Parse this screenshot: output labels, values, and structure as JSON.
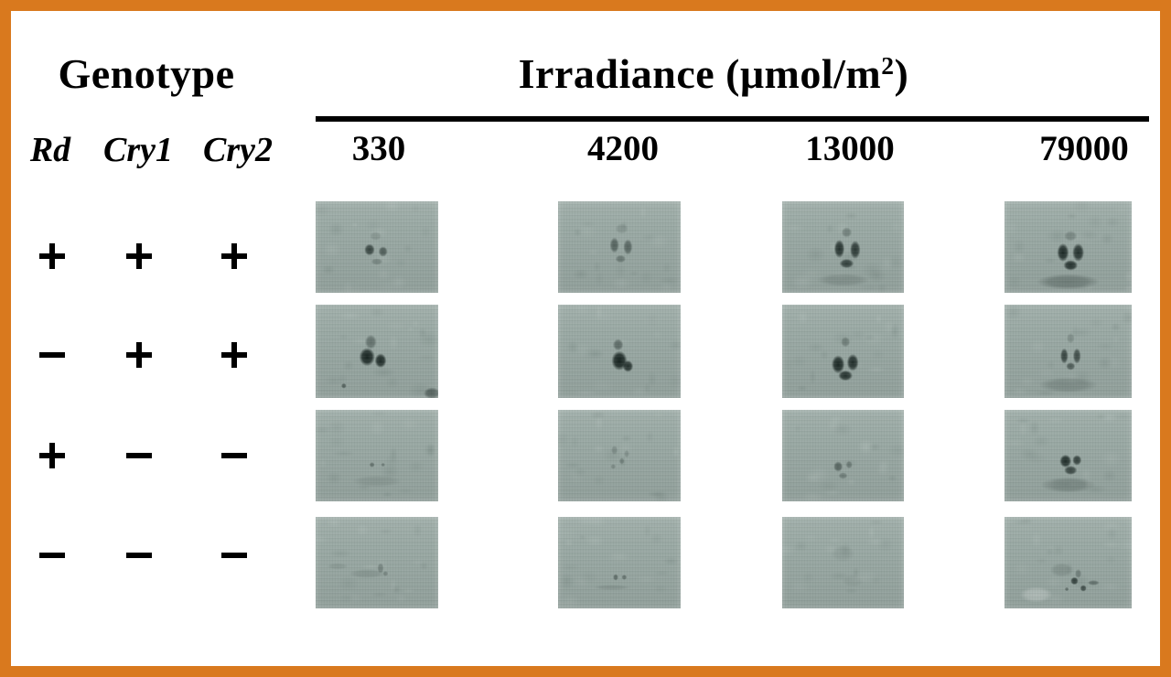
{
  "colors": {
    "frame": "#d9791e",
    "background": "#ffffff",
    "panel_base": "#9baaa5",
    "ink": "#101c19",
    "text": "#000000"
  },
  "genotype": {
    "title": "Genotype",
    "genes": [
      "Rd",
      "Cry1",
      "Cry2"
    ],
    "rows": [
      [
        "+",
        "+",
        "+"
      ],
      [
        "−",
        "+",
        "+"
      ],
      [
        "+",
        "−",
        "−"
      ],
      [
        "−",
        "−",
        "−"
      ]
    ]
  },
  "irradiance": {
    "title_pre": "Irradiance (μmol/m",
    "title_sup": "2",
    "title_post": ")",
    "levels": [
      "330",
      "4200",
      "13000",
      "79000"
    ]
  },
  "panels": {
    "rows": [
      [
        {
          "blobs": [
            [
              44,
              53,
              8,
              9,
              0.72
            ],
            [
              55,
              55,
              7,
              8,
              0.55
            ],
            [
              49,
              38,
              9,
              7,
              0.15
            ],
            [
              50,
              66,
              9,
              5,
              0.25
            ]
          ]
        },
        {
          "blobs": [
            [
              46,
              48,
              7,
              12,
              0.5
            ],
            [
              57,
              50,
              7,
              12,
              0.48
            ],
            [
              51,
              63,
              8,
              6,
              0.35
            ],
            [
              52,
              30,
              10,
              8,
              0.15
            ]
          ]
        },
        {
          "blobs": [
            [
              47,
              52,
              8,
              14,
              0.85
            ],
            [
              60,
              53,
              8,
              14,
              0.8
            ],
            [
              53,
              68,
              11,
              7,
              0.75
            ],
            [
              53,
              34,
              8,
              8,
              0.3
            ],
            [
              50,
              86,
              40,
              10,
              0.15
            ]
          ]
        },
        {
          "blobs": [
            [
              46,
              56,
              9,
              14,
              0.9
            ],
            [
              58,
              56,
              9,
              14,
              0.85
            ],
            [
              52,
              70,
              11,
              8,
              0.85
            ],
            [
              52,
              38,
              10,
              8,
              0.25
            ],
            [
              50,
              88,
              48,
              12,
              0.28
            ]
          ]
        }
      ],
      [
        {
          "blobs": [
            [
              42,
              56,
              12,
              14,
              0.95
            ],
            [
              53,
              60,
              9,
              11,
              0.9
            ],
            [
              45,
              40,
              9,
              11,
              0.4
            ],
            [
              23,
              87,
              4,
              4,
              0.5
            ],
            [
              95,
              95,
              13,
              9,
              0.5
            ]
          ]
        },
        {
          "blobs": [
            [
              50,
              60,
              12,
              15,
              0.97
            ],
            [
              49,
              43,
              8,
              9,
              0.45
            ],
            [
              57,
              66,
              8,
              9,
              0.85
            ]
          ]
        },
        {
          "blobs": [
            [
              46,
              64,
              10,
              14,
              0.92
            ],
            [
              58,
              62,
              9,
              13,
              0.87
            ],
            [
              52,
              76,
              11,
              8,
              0.85
            ],
            [
              52,
              40,
              7,
              8,
              0.3
            ]
          ]
        },
        {
          "blobs": [
            [
              47,
              55,
              6,
              12,
              0.72
            ],
            [
              57,
              55,
              6,
              12,
              0.66
            ],
            [
              52,
              66,
              7,
              6,
              0.55
            ],
            [
              52,
              36,
              6,
              8,
              0.2
            ],
            [
              50,
              86,
              45,
              12,
              0.18
            ]
          ]
        }
      ],
      [
        {
          "blobs": [
            [
              46,
              60,
              4,
              4,
              0.38
            ],
            [
              55,
              60,
              3,
              3,
              0.3
            ],
            [
              50,
              78,
              38,
              9,
              0.1
            ]
          ]
        },
        {
          "blobs": [
            [
              46,
              44,
              5,
              7,
              0.2
            ],
            [
              52,
              56,
              4,
              5,
              0.26
            ],
            [
              45,
              62,
              4,
              4,
              0.22
            ],
            [
              56,
              48,
              4,
              6,
              0.18
            ]
          ]
        },
        {
          "blobs": [
            [
              46,
              62,
              7,
              8,
              0.48
            ],
            [
              55,
              60,
              5,
              6,
              0.32
            ],
            [
              50,
              72,
              7,
              5,
              0.3
            ]
          ]
        },
        {
          "blobs": [
            [
              48,
              56,
              9,
              10,
              0.88
            ],
            [
              57,
              55,
              7,
              8,
              0.75
            ],
            [
              52,
              66,
              10,
              7,
              0.7
            ],
            [
              50,
              82,
              42,
              12,
              0.22
            ]
          ]
        }
      ],
      [
        {
          "blobs": [
            [
              53,
              56,
              5,
              8,
              0.28
            ],
            [
              57,
              62,
              4,
              4,
              0.25
            ],
            [
              42,
              62,
              28,
              7,
              0.12
            ],
            [
              18,
              54,
              16,
              5,
              0.1
            ]
          ]
        },
        {
          "blobs": [
            [
              47,
              66,
              4,
              5,
              0.42
            ],
            [
              54,
              66,
              4,
              4,
              0.38
            ],
            [
              44,
              77,
              28,
              4,
              0.12
            ]
          ]
        },
        {
          "blobs": [
            [
              50,
              40,
              18,
              13,
              0.07
            ],
            [
              58,
              70,
              16,
              10,
              0.06
            ]
          ]
        },
        {
          "blobs": [
            [
              55,
              70,
              6,
              6,
              0.75
            ],
            [
              62,
              78,
              5,
              5,
              0.65
            ],
            [
              49,
              79,
              3,
              3,
              0.42
            ],
            [
              70,
              72,
              9,
              4,
              0.38
            ],
            [
              58,
              62,
              5,
              7,
              0.3
            ],
            [
              45,
              58,
              18,
              11,
              0.15
            ],
            [
              25,
              85,
              25,
              12,
              -0.25
            ]
          ]
        }
      ]
    ]
  }
}
